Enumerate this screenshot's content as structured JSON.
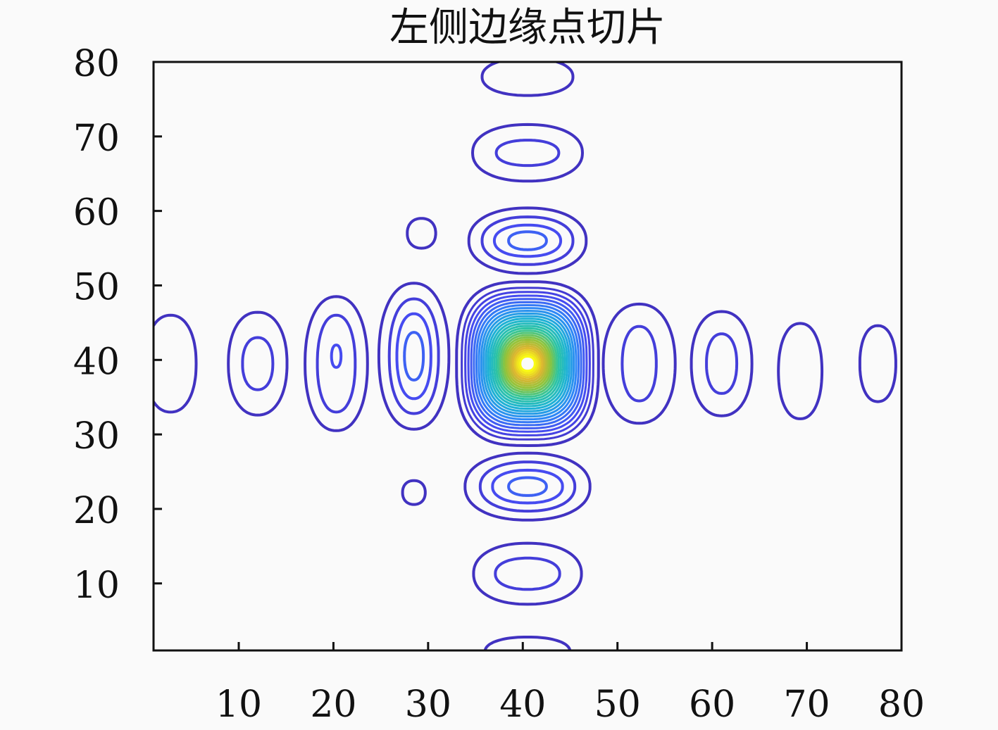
{
  "chart_data": {
    "type": "contour",
    "title": "左侧边缘点切片",
    "xlabel": "",
    "ylabel": "",
    "xlim": [
      1,
      80
    ],
    "ylim": [
      1,
      80
    ],
    "xticks": [
      10,
      20,
      30,
      40,
      50,
      60,
      70,
      80
    ],
    "yticks": [
      10,
      20,
      30,
      40,
      50,
      60,
      70,
      80
    ],
    "xtick_labels": [
      "10",
      "20",
      "30",
      "40",
      "50",
      "60",
      "70",
      "80"
    ],
    "ytick_labels": [
      "10",
      "20",
      "30",
      "40",
      "50",
      "60",
      "70",
      "80"
    ],
    "grid": false,
    "colormap": [
      "#3e26a8",
      "#4748f0",
      "#2e87f7",
      "#1db3d4",
      "#2fc5a0",
      "#8fc43a",
      "#dcb431",
      "#f9fb15"
    ],
    "contour_lines": [
      {
        "cx": 40.5,
        "cy": 39.5,
        "rx": 7.5,
        "ry": 11,
        "level": 0.05
      },
      {
        "cx": 40.5,
        "cy": 39.5,
        "rx": 0.8,
        "ry": 1.0,
        "level": 1.0
      },
      {
        "cx": 40.5,
        "cy": 78,
        "rx": 4.8,
        "ry": 2.5,
        "level": 0.05
      },
      {
        "cx": 40.5,
        "cy": 67.8,
        "rx": 5.8,
        "ry": 3.8,
        "level": 0.05
      },
      {
        "cx": 40.5,
        "cy": 67.8,
        "rx": 3.3,
        "ry": 1.7,
        "level": 0.1
      },
      {
        "cx": 40.5,
        "cy": 56,
        "rx": 6.2,
        "ry": 4.4,
        "level": 0.05
      },
      {
        "cx": 40.5,
        "cy": 56,
        "rx": 4.8,
        "ry": 3.2,
        "level": 0.1
      },
      {
        "cx": 40.5,
        "cy": 56,
        "rx": 3.5,
        "ry": 2.1,
        "level": 0.15
      },
      {
        "cx": 40.5,
        "cy": 56,
        "rx": 2.0,
        "ry": 1.2,
        "level": 0.2
      },
      {
        "cx": 40.5,
        "cy": 23,
        "rx": 6.6,
        "ry": 4.5,
        "level": 0.05
      },
      {
        "cx": 40.5,
        "cy": 23,
        "rx": 5.0,
        "ry": 3.3,
        "level": 0.1
      },
      {
        "cx": 40.5,
        "cy": 23,
        "rx": 3.7,
        "ry": 2.2,
        "level": 0.15
      },
      {
        "cx": 40.5,
        "cy": 23,
        "rx": 2.0,
        "ry": 1.2,
        "level": 0.2
      },
      {
        "cx": 40.5,
        "cy": 11.3,
        "rx": 5.7,
        "ry": 4.1,
        "level": 0.05
      },
      {
        "cx": 40.5,
        "cy": 11.3,
        "rx": 3.4,
        "ry": 2.1,
        "level": 0.1
      },
      {
        "cx": 40.5,
        "cy": 0.8,
        "rx": 4.5,
        "ry": 2.0,
        "level": 0.05
      },
      {
        "cx": 29.3,
        "cy": 57,
        "rx": 1.5,
        "ry": 2.0,
        "level": 0.05
      },
      {
        "cx": 28.5,
        "cy": 22.2,
        "rx": 1.2,
        "ry": 1.6,
        "level": 0.05
      },
      {
        "cx": 2.8,
        "cy": 39.5,
        "rx": 2.7,
        "ry": 6.5,
        "level": 0.05
      },
      {
        "cx": 12.0,
        "cy": 39.5,
        "rx": 3.1,
        "ry": 6.9,
        "level": 0.05
      },
      {
        "cx": 12.0,
        "cy": 39.5,
        "rx": 1.6,
        "ry": 3.5,
        "level": 0.1
      },
      {
        "cx": 20.3,
        "cy": 39.5,
        "rx": 3.3,
        "ry": 9.0,
        "level": 0.05
      },
      {
        "cx": 20.3,
        "cy": 39.5,
        "rx": 2.0,
        "ry": 6.5,
        "level": 0.1
      },
      {
        "cx": 20.3,
        "cy": 40.5,
        "rx": 0.5,
        "ry": 1.5,
        "level": 0.15
      },
      {
        "cx": 28.5,
        "cy": 40.5,
        "rx": 3.7,
        "ry": 9.8,
        "level": 0.05
      },
      {
        "cx": 28.5,
        "cy": 40.5,
        "rx": 2.6,
        "ry": 7.7,
        "level": 0.1
      },
      {
        "cx": 28.5,
        "cy": 40.5,
        "rx": 1.8,
        "ry": 5.7,
        "level": 0.15
      },
      {
        "cx": 28.5,
        "cy": 40.5,
        "rx": 1.0,
        "ry": 3.2,
        "level": 0.2
      },
      {
        "cx": 52.3,
        "cy": 39.5,
        "rx": 3.8,
        "ry": 8.0,
        "level": 0.05
      },
      {
        "cx": 52.3,
        "cy": 39.5,
        "rx": 1.8,
        "ry": 5.0,
        "level": 0.1
      },
      {
        "cx": 61.0,
        "cy": 39.5,
        "rx": 3.2,
        "ry": 7.0,
        "level": 0.05
      },
      {
        "cx": 61.0,
        "cy": 39.5,
        "rx": 1.6,
        "ry": 4.0,
        "level": 0.1
      },
      {
        "cx": 69.3,
        "cy": 38.5,
        "rx": 2.3,
        "ry": 6.4,
        "level": 0.05
      },
      {
        "cx": 77.5,
        "cy": 39.5,
        "rx": 1.9,
        "ry": 5.1,
        "level": 0.05
      }
    ]
  }
}
